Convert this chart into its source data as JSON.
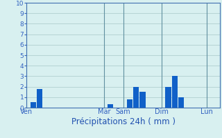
{
  "title": "",
  "xlabel": "Précipitations 24h ( mm )",
  "ylabel": "",
  "ylim": [
    0,
    10
  ],
  "yticks": [
    0,
    1,
    2,
    3,
    4,
    5,
    6,
    7,
    8,
    9,
    10
  ],
  "bar_data": [
    {
      "x": 1,
      "height": 0.5
    },
    {
      "x": 2,
      "height": 1.8
    },
    {
      "x": 13,
      "height": 0.3
    },
    {
      "x": 16,
      "height": 0.8
    },
    {
      "x": 17,
      "height": 2.0
    },
    {
      "x": 18,
      "height": 1.5
    },
    {
      "x": 22,
      "height": 2.0
    },
    {
      "x": 23,
      "height": 3.0
    },
    {
      "x": 24,
      "height": 1.0
    }
  ],
  "vlines_x": [
    0,
    12,
    15,
    21,
    28
  ],
  "xtick_positions": [
    0,
    12,
    15,
    21,
    28
  ],
  "xtick_labels": [
    "Ven",
    "Mar",
    "Sam",
    "Dim",
    "Lun"
  ],
  "xlim": [
    0,
    30
  ],
  "bar_width": 0.9,
  "bar_color": "#1060c8",
  "bg_color": "#d8f0f0",
  "grid_color": "#a8c8c8",
  "vline_color": "#6090a0",
  "axis_color": "#4070b0",
  "tick_color": "#3060c0",
  "xlabel_color": "#2050b0",
  "xlabel_fontsize": 8.5,
  "ytick_fontsize": 6.5,
  "xtick_fontsize": 7.0,
  "fig_width": 3.2,
  "fig_height": 2.0,
  "dpi": 100
}
